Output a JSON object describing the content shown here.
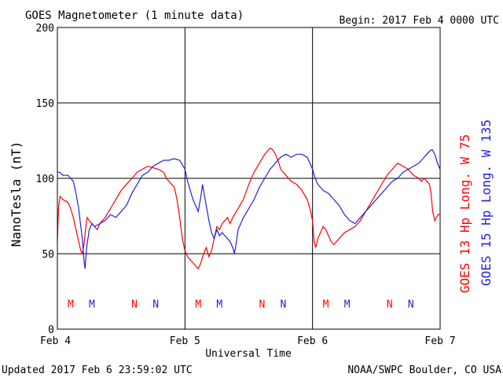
{
  "title": "GOES Magnetometer (1 minute data)",
  "begin_text": "Begin:  2017 Feb 4 0000 UTC",
  "updated_text": "Updated 2017 Feb  6 23:59:02 UTC",
  "credit_text": "NOAA/SWPC Boulder, CO USA",
  "colors": {
    "goes13": "#ff0000",
    "goes15": "#2020e0",
    "grid": "#000000",
    "text": "#000000"
  },
  "chart_data": {
    "type": "line",
    "xlabel": "Universal Time",
    "ylabel": "NanoTesla (nT)",
    "ylim": [
      0,
      200
    ],
    "yticks": [
      0,
      50,
      100,
      150,
      200
    ],
    "xlim": [
      0,
      72
    ],
    "xticks": [
      {
        "hour": 0,
        "label": "Feb 4"
      },
      {
        "hour": 24,
        "label": "Feb 5"
      },
      {
        "hour": 48,
        "label": "Feb 6"
      },
      {
        "hour": 72,
        "label": "Feb 7"
      }
    ],
    "grid": true,
    "series": [
      {
        "name": "GOES 13 Hp  Long. W 75",
        "color": "#ff0000",
        "points": [
          [
            0,
            58
          ],
          [
            0.2,
            80
          ],
          [
            0.5,
            88
          ],
          [
            1,
            86
          ],
          [
            2,
            84
          ],
          [
            2.5,
            80
          ],
          [
            3,
            74
          ],
          [
            3.5,
            66
          ],
          [
            4,
            58
          ],
          [
            4.4,
            52
          ],
          [
            4.7,
            50
          ],
          [
            5,
            56
          ],
          [
            5.3,
            66
          ],
          [
            5.6,
            74
          ],
          [
            6,
            72
          ],
          [
            6.5,
            70
          ],
          [
            7,
            68
          ],
          [
            7.5,
            66
          ],
          [
            8,
            70
          ],
          [
            9,
            74
          ],
          [
            10,
            80
          ],
          [
            11,
            86
          ],
          [
            12,
            92
          ],
          [
            13,
            96
          ],
          [
            14,
            100
          ],
          [
            15,
            104
          ],
          [
            16,
            106
          ],
          [
            17,
            108
          ],
          [
            18,
            107
          ],
          [
            19,
            106
          ],
          [
            20,
            104
          ],
          [
            20.5,
            100
          ],
          [
            21,
            98
          ],
          [
            21.5,
            96
          ],
          [
            22,
            94
          ],
          [
            22.5,
            86
          ],
          [
            23,
            74
          ],
          [
            23.5,
            60
          ],
          [
            24,
            52
          ],
          [
            24.5,
            48
          ],
          [
            25,
            46
          ],
          [
            25.5,
            44
          ],
          [
            26,
            42
          ],
          [
            26.5,
            40
          ],
          [
            27,
            44
          ],
          [
            27.5,
            50
          ],
          [
            28,
            54
          ],
          [
            28.5,
            48
          ],
          [
            29,
            52
          ],
          [
            29.5,
            60
          ],
          [
            30,
            68
          ],
          [
            30.5,
            66
          ],
          [
            31,
            70
          ],
          [
            31.5,
            72
          ],
          [
            32,
            74
          ],
          [
            32.5,
            70
          ],
          [
            33,
            74
          ],
          [
            34,
            80
          ],
          [
            35,
            86
          ],
          [
            36,
            96
          ],
          [
            37,
            104
          ],
          [
            38,
            110
          ],
          [
            39,
            116
          ],
          [
            40,
            120
          ],
          [
            40.5,
            119
          ],
          [
            41,
            116
          ],
          [
            41.5,
            112
          ],
          [
            42,
            106
          ],
          [
            43,
            102
          ],
          [
            44,
            98
          ],
          [
            45,
            96
          ],
          [
            46,
            92
          ],
          [
            47,
            86
          ],
          [
            47.5,
            80
          ],
          [
            48,
            72
          ],
          [
            48.3,
            58
          ],
          [
            48.6,
            54
          ],
          [
            49,
            60
          ],
          [
            49.5,
            64
          ],
          [
            50,
            68
          ],
          [
            50.5,
            66
          ],
          [
            51,
            62
          ],
          [
            51.5,
            58
          ],
          [
            52,
            56
          ],
          [
            53,
            60
          ],
          [
            54,
            64
          ],
          [
            55,
            66
          ],
          [
            56,
            68
          ],
          [
            57,
            72
          ],
          [
            58,
            78
          ],
          [
            59,
            84
          ],
          [
            60,
            90
          ],
          [
            61,
            96
          ],
          [
            62,
            102
          ],
          [
            63,
            106
          ],
          [
            64,
            110
          ],
          [
            65,
            108
          ],
          [
            66,
            106
          ],
          [
            67,
            102
          ],
          [
            68,
            100
          ],
          [
            68.5,
            98
          ],
          [
            69,
            100
          ],
          [
            69.5,
            98
          ],
          [
            70,
            96
          ],
          [
            70.3,
            90
          ],
          [
            70.6,
            78
          ],
          [
            71,
            72
          ],
          [
            71.3,
            74
          ],
          [
            71.6,
            76
          ],
          [
            72,
            76
          ]
        ]
      },
      {
        "name": "GOES 15 Hp  Long. W 135",
        "color": "#2020e0",
        "points": [
          [
            0,
            104
          ],
          [
            0.5,
            104
          ],
          [
            1,
            102
          ],
          [
            2,
            102
          ],
          [
            2.5,
            100
          ],
          [
            3,
            98
          ],
          [
            3.5,
            90
          ],
          [
            4,
            80
          ],
          [
            4.4,
            68
          ],
          [
            4.7,
            60
          ],
          [
            5,
            46
          ],
          [
            5.2,
            40
          ],
          [
            5.5,
            54
          ],
          [
            6,
            66
          ],
          [
            6.5,
            70
          ],
          [
            7,
            68
          ],
          [
            8,
            70
          ],
          [
            9,
            72
          ],
          [
            10,
            76
          ],
          [
            11,
            74
          ],
          [
            12,
            78
          ],
          [
            13,
            82
          ],
          [
            14,
            90
          ],
          [
            15,
            96
          ],
          [
            16,
            102
          ],
          [
            17,
            104
          ],
          [
            18,
            108
          ],
          [
            19,
            110
          ],
          [
            20,
            112
          ],
          [
            21,
            112
          ],
          [
            22,
            113
          ],
          [
            23,
            112
          ],
          [
            24,
            106
          ],
          [
            24.5,
            98
          ],
          [
            25,
            92
          ],
          [
            25.5,
            86
          ],
          [
            26,
            82
          ],
          [
            26.5,
            78
          ],
          [
            27,
            88
          ],
          [
            27.3,
            96
          ],
          [
            27.6,
            90
          ],
          [
            28,
            82
          ],
          [
            28.5,
            72
          ],
          [
            29,
            64
          ],
          [
            29.5,
            60
          ],
          [
            30,
            66
          ],
          [
            30.5,
            62
          ],
          [
            31,
            64
          ],
          [
            31.5,
            62
          ],
          [
            32,
            60
          ],
          [
            32.5,
            58
          ],
          [
            33,
            54
          ],
          [
            33.3,
            50
          ],
          [
            33.6,
            56
          ],
          [
            34,
            66
          ],
          [
            35,
            74
          ],
          [
            36,
            80
          ],
          [
            37,
            86
          ],
          [
            38,
            94
          ],
          [
            39,
            100
          ],
          [
            40,
            106
          ],
          [
            41,
            110
          ],
          [
            42,
            114
          ],
          [
            43,
            116
          ],
          [
            44,
            114
          ],
          [
            45,
            116
          ],
          [
            46,
            116
          ],
          [
            47,
            114
          ],
          [
            48,
            106
          ],
          [
            48.5,
            100
          ],
          [
            49,
            96
          ],
          [
            50,
            92
          ],
          [
            51,
            90
          ],
          [
            52,
            86
          ],
          [
            53,
            82
          ],
          [
            54,
            76
          ],
          [
            55,
            72
          ],
          [
            56,
            70
          ],
          [
            57,
            74
          ],
          [
            58,
            78
          ],
          [
            59,
            82
          ],
          [
            60,
            86
          ],
          [
            61,
            90
          ],
          [
            62,
            94
          ],
          [
            63,
            98
          ],
          [
            64,
            100
          ],
          [
            65,
            104
          ],
          [
            66,
            106
          ],
          [
            67,
            108
          ],
          [
            68,
            110
          ],
          [
            68.5,
            112
          ],
          [
            69,
            114
          ],
          [
            69.5,
            116
          ],
          [
            70,
            118
          ],
          [
            70.5,
            119
          ],
          [
            71,
            116
          ],
          [
            71.5,
            110
          ],
          [
            72,
            106
          ]
        ]
      }
    ],
    "annotations": [
      {
        "hour": 2.5,
        "value": 17,
        "text": "M",
        "color": "#ff0000"
      },
      {
        "hour": 6.5,
        "value": 17,
        "text": "M",
        "color": "#2020e0"
      },
      {
        "hour": 14.5,
        "value": 17,
        "text": "N",
        "color": "#ff0000"
      },
      {
        "hour": 18.5,
        "value": 17,
        "text": "N",
        "color": "#2020e0"
      },
      {
        "hour": 26.5,
        "value": 17,
        "text": "M",
        "color": "#ff0000"
      },
      {
        "hour": 30.5,
        "value": 17,
        "text": "M",
        "color": "#2020e0"
      },
      {
        "hour": 38.5,
        "value": 17,
        "text": "N",
        "color": "#ff0000"
      },
      {
        "hour": 42.5,
        "value": 17,
        "text": "N",
        "color": "#2020e0"
      },
      {
        "hour": 50.5,
        "value": 17,
        "text": "M",
        "color": "#ff0000"
      },
      {
        "hour": 54.5,
        "value": 17,
        "text": "M",
        "color": "#2020e0"
      },
      {
        "hour": 62.5,
        "value": 17,
        "text": "N",
        "color": "#ff0000"
      },
      {
        "hour": 66.5,
        "value": 17,
        "text": "N",
        "color": "#2020e0"
      }
    ]
  }
}
